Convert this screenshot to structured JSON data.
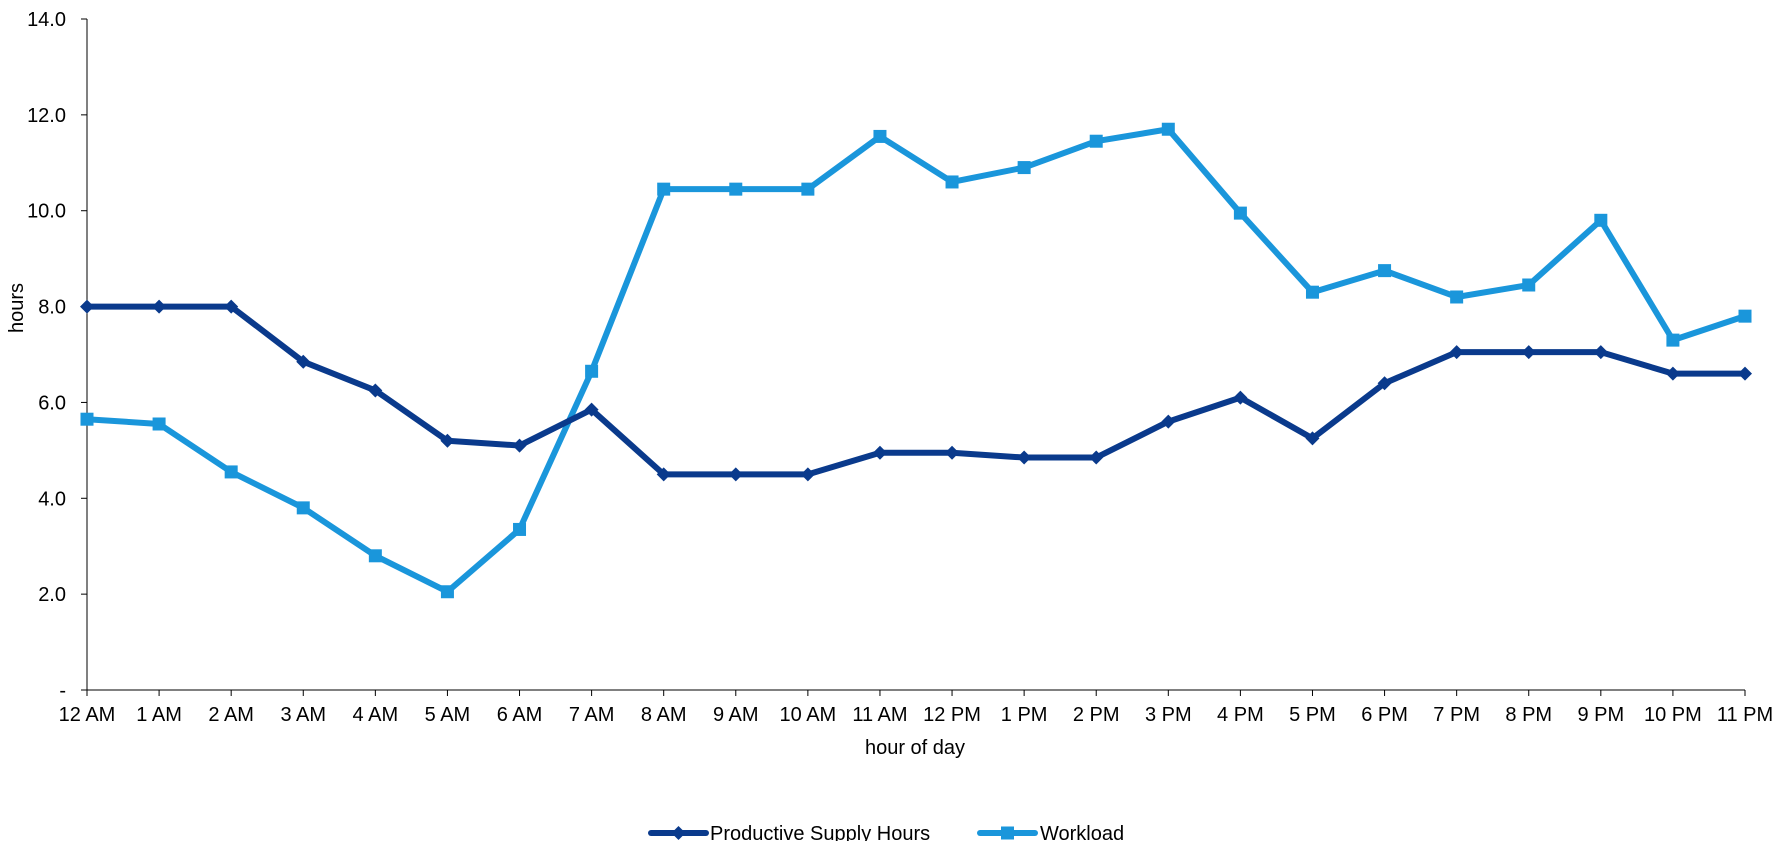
{
  "chart_data": {
    "type": "line",
    "title": "",
    "xlabel": "hour of day",
    "ylabel": "hours",
    "ylim": [
      0,
      14
    ],
    "yticks": [
      0,
      2,
      4,
      6,
      8,
      10,
      12,
      14
    ],
    "ytick_labels": [
      "-",
      "2.0",
      "4.0",
      "6.0",
      "8.0",
      "10.0",
      "12.0",
      "14.0"
    ],
    "categories": [
      "12 AM",
      "1 AM",
      "2 AM",
      "3 AM",
      "4 AM",
      "5 AM",
      "6 AM",
      "7 AM",
      "8 AM",
      "9 AM",
      "10 AM",
      "11 AM",
      "12 PM",
      "1 PM",
      "2 PM",
      "3 PM",
      "4 PM",
      "5 PM",
      "6 PM",
      "7 PM",
      "8 PM",
      "9 PM",
      "10 PM",
      "11 PM"
    ],
    "grid": false,
    "legend_position": "bottom",
    "series": [
      {
        "name": "Productive Supply Hours",
        "color": "#0a3a8c",
        "marker": "diamond",
        "values": [
          8.0,
          8.0,
          8.0,
          6.85,
          6.25,
          5.2,
          5.1,
          5.85,
          4.5,
          4.5,
          4.5,
          4.95,
          4.95,
          4.85,
          4.85,
          5.6,
          6.1,
          5.25,
          6.4,
          7.05,
          7.05,
          7.05,
          6.6,
          6.6
        ]
      },
      {
        "name": "Workload",
        "color": "#1a96db",
        "marker": "square",
        "values": [
          5.65,
          5.55,
          4.55,
          3.8,
          2.8,
          2.05,
          3.35,
          6.65,
          10.45,
          10.45,
          10.45,
          11.55,
          10.6,
          10.9,
          11.45,
          11.7,
          9.95,
          8.3,
          8.75,
          8.2,
          8.45,
          9.8,
          7.3,
          7.8
        ]
      }
    ]
  }
}
